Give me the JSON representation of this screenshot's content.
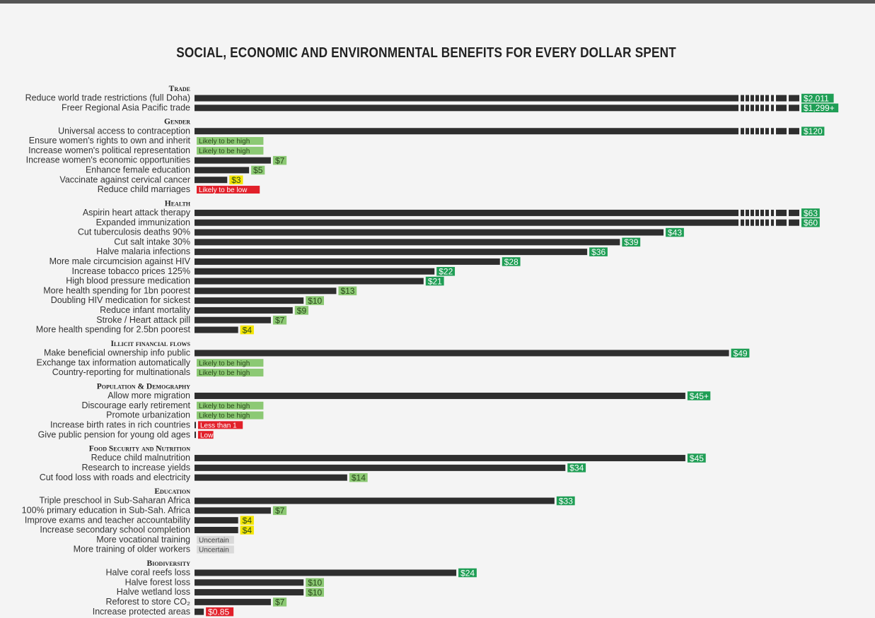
{
  "title": "SOCIAL, ECONOMIC AND ENVIRONMENTAL BENEFITS FOR EVERY DOLLAR SPENT",
  "colors": {
    "bar": "#2e2e2e",
    "high": "#1f9e55",
    "medium": "#8cc974",
    "low": "#f4e500",
    "verylow": "#e2202a",
    "uncertain": "#d9d9d9"
  },
  "chart_data": {
    "type": "bar",
    "orientation": "horizontal",
    "unit": "$",
    "note": "values exceeding the axis are shown with a broken (dashed) bar end",
    "groups": [
      {
        "name": "Trade",
        "items": [
          {
            "label": "Reduce world trade restrictions (full Doha)",
            "value": 2011,
            "display": "$2,011",
            "rating": "high",
            "broken": true
          },
          {
            "label": "Freer Regional Asia Pacific trade",
            "value": 1299,
            "display": "$1,299+",
            "rating": "high",
            "broken": true
          }
        ]
      },
      {
        "name": "Gender",
        "items": [
          {
            "label": "Universal access to contraception",
            "value": 120,
            "display": "$120",
            "rating": "high",
            "broken": true
          },
          {
            "label": "Ensure women's rights to own and inherit",
            "value": null,
            "display": "Likely to be high",
            "rating": "medium"
          },
          {
            "label": "Increase women's political representation",
            "value": null,
            "display": "Likely to be high",
            "rating": "medium"
          },
          {
            "label": "Increase women's economic opportunities",
            "value": 7,
            "display": "$7",
            "rating": "medium"
          },
          {
            "label": "Enhance female education",
            "value": 5,
            "display": "$5",
            "rating": "medium"
          },
          {
            "label": "Vaccinate against cervical cancer",
            "value": 3,
            "display": "$3",
            "rating": "low"
          },
          {
            "label": "Reduce child marriages",
            "value": null,
            "display": "Likely to be low",
            "rating": "verylow"
          }
        ]
      },
      {
        "name": "Health",
        "items": [
          {
            "label": "Aspirin heart attack therapy",
            "value": 63,
            "display": "$63",
            "rating": "high",
            "broken": true
          },
          {
            "label": "Expanded immunization",
            "value": 60,
            "display": "$60",
            "rating": "high",
            "broken": true
          },
          {
            "label": "Cut tuberculosis deaths 90%",
            "value": 43,
            "display": "$43",
            "rating": "high"
          },
          {
            "label": "Cut salt intake 30%",
            "value": 39,
            "display": "$39",
            "rating": "high"
          },
          {
            "label": "Halve malaria infections",
            "value": 36,
            "display": "$36",
            "rating": "high"
          },
          {
            "label": "More male circumcision against HIV",
            "value": 28,
            "display": "$28",
            "rating": "high"
          },
          {
            "label": "Increase tobacco prices 125%",
            "value": 22,
            "display": "$22",
            "rating": "high"
          },
          {
            "label": "High blood pressure medication",
            "value": 21,
            "display": "$21",
            "rating": "high"
          },
          {
            "label": "More health spending for 1bn poorest",
            "value": 13,
            "display": "$13",
            "rating": "medium"
          },
          {
            "label": "Doubling HIV medication for sickest",
            "value": 10,
            "display": "$10",
            "rating": "medium"
          },
          {
            "label": "Reduce infant mortality",
            "value": 9,
            "display": "$9",
            "rating": "medium"
          },
          {
            "label": "Stroke / Heart attack pill",
            "value": 7,
            "display": "$7",
            "rating": "medium"
          },
          {
            "label": "More health spending for 2.5bn poorest",
            "value": 4,
            "display": "$4",
            "rating": "low"
          }
        ]
      },
      {
        "name": "Illicit financial flows",
        "items": [
          {
            "label": "Make beneficial ownership info public",
            "value": 49,
            "display": "$49",
            "rating": "high"
          },
          {
            "label": "Exchange tax information automatically",
            "value": null,
            "display": "Likely to be high",
            "rating": "medium"
          },
          {
            "label": "Country-reporting for multinationals",
            "value": null,
            "display": "Likely to be high",
            "rating": "medium"
          }
        ]
      },
      {
        "name": "Population & Demography",
        "items": [
          {
            "label": "Allow more migration",
            "value": 45,
            "display": "$45+",
            "rating": "high"
          },
          {
            "label": "Discourage early retirement",
            "value": null,
            "display": "Likely to be high",
            "rating": "medium"
          },
          {
            "label": "Promote urbanization",
            "value": null,
            "display": "Likely to be high",
            "rating": "medium"
          },
          {
            "label": "Increase birth rates in rich countries",
            "value": 0.1,
            "display": "Less than 1",
            "rating": "verylow"
          },
          {
            "label": "Give public pension for young old ages",
            "value": 0.1,
            "display": "Low",
            "rating": "verylow"
          }
        ]
      },
      {
        "name": "Food Security and Nutrition",
        "items": [
          {
            "label": "Reduce child malnutrition",
            "value": 45,
            "display": "$45",
            "rating": "high"
          },
          {
            "label": "Research to increase yields",
            "value": 34,
            "display": "$34",
            "rating": "high"
          },
          {
            "label": "Cut food loss with roads and electricity",
            "value": 14,
            "display": "$14",
            "rating": "medium"
          }
        ]
      },
      {
        "name": "Education",
        "items": [
          {
            "label": "Triple preschool in Sub-Saharan Africa",
            "value": 33,
            "display": "$33",
            "rating": "high"
          },
          {
            "label": "100% primary education in Sub-Sah. Africa",
            "value": 7,
            "display": "$7",
            "rating": "medium"
          },
          {
            "label": "Improve exams and teacher accountability",
            "value": 4,
            "display": "$4",
            "rating": "low"
          },
          {
            "label": "Increase secondary school completion",
            "value": 4,
            "display": "$4",
            "rating": "low"
          },
          {
            "label": "More vocational training",
            "value": null,
            "display": "Uncertain",
            "rating": "uncertain"
          },
          {
            "label": "More training of older workers",
            "value": null,
            "display": "Uncertain",
            "rating": "uncertain"
          }
        ]
      },
      {
        "name": "Biodiversity",
        "items": [
          {
            "label": "Halve coral reefs loss",
            "value": 24,
            "display": "$24",
            "rating": "high"
          },
          {
            "label": "Halve forest loss",
            "value": 10,
            "display": "$10",
            "rating": "medium"
          },
          {
            "label": "Halve wetland loss",
            "value": 10,
            "display": "$10",
            "rating": "medium"
          },
          {
            "label": "Reforest to store CO₂",
            "value": 7,
            "display": "$7",
            "rating": "medium"
          },
          {
            "label": "Increase protected areas",
            "value": 0.85,
            "display": "$0.85",
            "rating": "verylow"
          }
        ]
      }
    ]
  }
}
